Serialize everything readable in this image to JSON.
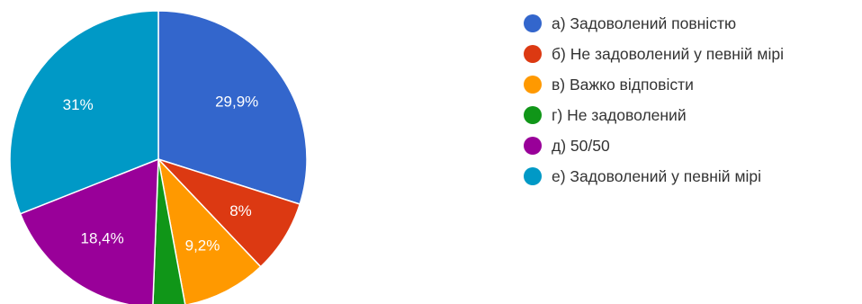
{
  "chart_data": {
    "type": "pie",
    "categories": [
      "а) Задоволений повністю",
      "б) Не задоволений у певній мірі",
      "в) Важко відповісти",
      "г) Не задоволений",
      "д) 50/50",
      "е) Задоволений у певній мірі"
    ],
    "values": [
      29.9,
      8.0,
      9.2,
      3.5,
      18.4,
      31.0
    ],
    "slice_labels": [
      "29,9%",
      "8%",
      "9,2%",
      "",
      "18,4%",
      "31%"
    ],
    "colors": [
      "#3366cc",
      "#dc3912",
      "#ff9900",
      "#109618",
      "#990099",
      "#0099c6"
    ],
    "start_angle_deg": 90,
    "direction": "clockwise",
    "legend_position": "right"
  }
}
